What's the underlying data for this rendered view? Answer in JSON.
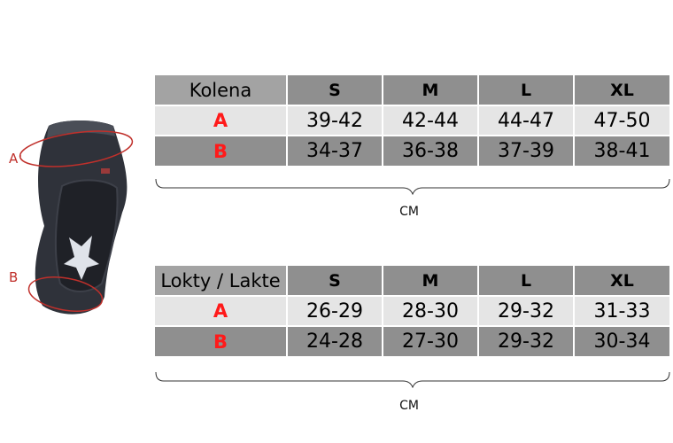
{
  "labels": {
    "a": "A",
    "b": "B"
  },
  "tables": [
    {
      "corner": "Kolena",
      "sizes": [
        "S",
        "M",
        "L",
        "XL"
      ],
      "rows": [
        {
          "label": "A",
          "values": [
            "39-42",
            "42-44",
            "44-47",
            "47-50"
          ]
        },
        {
          "label": "B",
          "values": [
            "34-37",
            "36-38",
            "37-39",
            "38-41"
          ]
        }
      ],
      "unit": "CM"
    },
    {
      "corner": "Lokty / Lakte",
      "sizes": [
        "S",
        "M",
        "L",
        "XL"
      ],
      "rows": [
        {
          "label": "A",
          "values": [
            "26-29",
            "28-30",
            "29-32",
            "31-33"
          ]
        },
        {
          "label": "B",
          "values": [
            "24-28",
            "27-30",
            "29-32",
            "30-34"
          ]
        }
      ],
      "unit": "CM"
    }
  ],
  "colors": {
    "accent_red": "#ff1a1a",
    "header_gray": "#8f8f8f",
    "light_gray": "#e5e5e5",
    "guard_dark": "#2f323a"
  }
}
